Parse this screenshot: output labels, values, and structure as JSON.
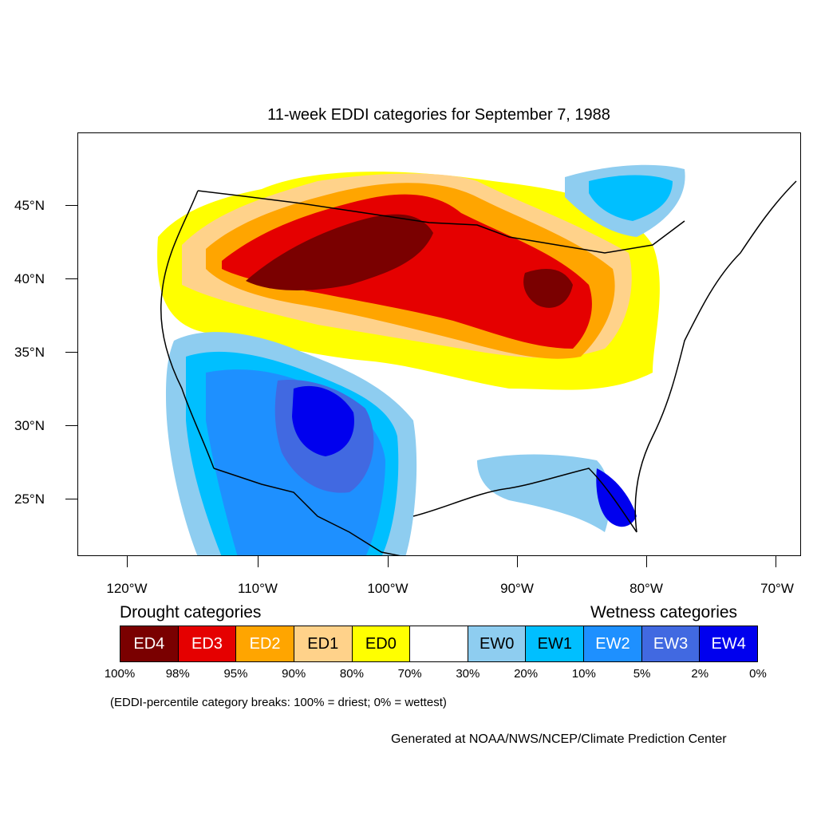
{
  "title": "11-week EDDI categories for September 7, 1988",
  "y_ticks": [
    "45°N",
    "40°N",
    "35°N",
    "30°N",
    "25°N"
  ],
  "x_ticks": [
    "120°W",
    "110°W",
    "100°W",
    "90°W",
    "80°W",
    "70°W"
  ],
  "legend": {
    "drought_heading": "Drought categories",
    "wetness_heading": "Wetness categories",
    "categories": [
      {
        "label": "ED4",
        "color": "#7a0000",
        "text_color": "#ffffff"
      },
      {
        "label": "ED3",
        "color": "#e50000",
        "text_color": "#ffffff"
      },
      {
        "label": "ED2",
        "color": "#ffa500",
        "text_color": "#ffffff"
      },
      {
        "label": "ED1",
        "color": "#ffd28a",
        "text_color": "#000000"
      },
      {
        "label": "ED0",
        "color": "#ffff00",
        "text_color": "#000000"
      },
      {
        "label": "",
        "color": "#ffffff",
        "text_color": "#000000"
      },
      {
        "label": "EW0",
        "color": "#8ecdf0",
        "text_color": "#000000"
      },
      {
        "label": "EW1",
        "color": "#00bfff",
        "text_color": "#000000"
      },
      {
        "label": "EW2",
        "color": "#1e90ff",
        "text_color": "#ffffff"
      },
      {
        "label": "EW3",
        "color": "#4169e1",
        "text_color": "#ffffff"
      },
      {
        "label": "EW4",
        "color": "#0000ee",
        "text_color": "#ffffff"
      }
    ],
    "breaks": [
      "100%",
      "98%",
      "95%",
      "90%",
      "80%",
      "70%",
      "30%",
      "20%",
      "10%",
      "5%",
      "2%",
      "0%"
    ]
  },
  "note": "(EDDI-percentile category breaks: 100% = driest; 0% = wettest)",
  "credit": "Generated at NOAA/NWS/NCEP/Climate Prediction Center"
}
